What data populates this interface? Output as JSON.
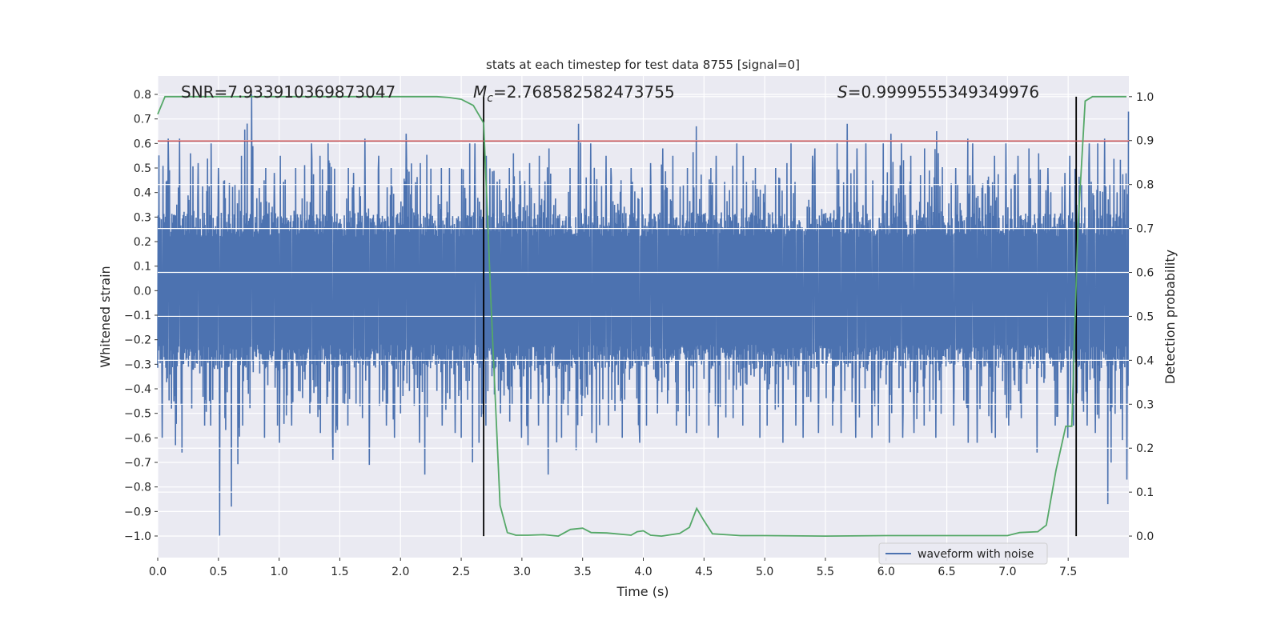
{
  "chart_data": {
    "type": "line",
    "title": "stats at each timestep for test data 8755 [signal=0]",
    "xlabel": "Time (s)",
    "ylabel": "Whitened strain",
    "ylabel_right": "Detection probability",
    "xlim": [
      0.0,
      8.0
    ],
    "ylim": [
      -1.088,
      0.875
    ],
    "ylim_right": [
      -0.049,
      1.047
    ],
    "x_ticks": [
      "0.0",
      "0.5",
      "1.0",
      "1.5",
      "2.0",
      "2.5",
      "3.0",
      "3.5",
      "4.0",
      "4.5",
      "5.0",
      "5.5",
      "6.0",
      "6.5",
      "7.0",
      "7.5"
    ],
    "y_ticks": [
      "0.8",
      "0.7",
      "0.6",
      "0.5",
      "0.4",
      "0.3",
      "0.2",
      "0.1",
      "0.0",
      "−0.1",
      "−0.2",
      "−0.3",
      "−0.4",
      "−0.5",
      "−0.6",
      "−0.7",
      "−0.8",
      "−0.9",
      "−1.0"
    ],
    "y_ticks_right": [
      "1.0",
      "0.9",
      "0.8",
      "0.7",
      "0.6",
      "0.5",
      "0.4",
      "0.3",
      "0.2",
      "0.1",
      "0.0"
    ],
    "grid": true,
    "legend": {
      "placement": "lower-right",
      "entries": [
        "waveform with noise"
      ]
    },
    "annotations": {
      "snr": "SNR=7.933910369873047",
      "mc_symbol": "M",
      "mc_sub": "c",
      "mc_value": "=2.768582582473755",
      "s_symbol": "S",
      "s_value": "=0.9999555349349976"
    },
    "threshold": 0.61,
    "markers_t": [
      2.685,
      7.566
    ],
    "colors": {
      "waveform": "#4c72b0",
      "probability": "#55a868",
      "threshold": "#c44e52",
      "markers": "#000000",
      "background": "#eaeaf2"
    },
    "waveform": {
      "name": "waveform with noise",
      "bin_width_s": 0.1,
      "upper_peaks": [
        0.62,
        0.62,
        0.56,
        0.52,
        0.6,
        0.5,
        0.55,
        0.8,
        0.5,
        0.48,
        0.55,
        0.5,
        0.6,
        0.55,
        0.6,
        0.5,
        0.48,
        0.62,
        0.55,
        0.5,
        0.64,
        0.52,
        0.62,
        0.5,
        0.5,
        0.6,
        0.6,
        0.55,
        0.5,
        0.56,
        0.52,
        0.55,
        0.58,
        0.5,
        0.68,
        0.6,
        0.55,
        0.5,
        0.45,
        0.5,
        0.52,
        0.58,
        0.55,
        0.5,
        0.67,
        0.5,
        0.55,
        0.6,
        0.55,
        0.5,
        0.5,
        0.52,
        0.6,
        0.55,
        0.58,
        0.6,
        0.68,
        0.58,
        0.6,
        0.6,
        0.64,
        0.6,
        0.55,
        0.58,
        0.65,
        0.5,
        0.62,
        0.6,
        0.55,
        0.6,
        0.55,
        0.58,
        0.56,
        0.5,
        0.48,
        0.55,
        0.6,
        0.6,
        0.62,
        0.73
      ],
      "lower_peaks": [
        -0.6,
        -0.63,
        -0.66,
        -0.55,
        -0.55,
        -1.0,
        -0.88,
        -0.55,
        -0.6,
        -0.55,
        -0.62,
        -0.55,
        -0.5,
        -0.58,
        -0.69,
        -0.55,
        -0.52,
        -0.71,
        -0.55,
        -0.6,
        -0.5,
        -0.62,
        -0.75,
        -0.55,
        -0.58,
        -0.7,
        -0.62,
        -0.55,
        -0.5,
        -0.6,
        -0.63,
        -0.55,
        -0.75,
        -0.6,
        -0.65,
        -0.58,
        -0.62,
        -0.55,
        -0.6,
        -0.62,
        -0.55,
        -0.5,
        -0.55,
        -0.58,
        -0.58,
        -0.55,
        -0.6,
        -0.52,
        -0.55,
        -0.6,
        -0.55,
        -0.62,
        -0.55,
        -0.6,
        -0.58,
        -0.55,
        -0.58,
        -0.6,
        -0.6,
        -0.55,
        -0.62,
        -0.6,
        -0.58,
        -0.55,
        -0.6,
        -0.55,
        -0.62,
        -0.62,
        -0.58,
        -0.6,
        -0.55,
        -0.52,
        -0.66,
        -0.55,
        -0.6,
        -0.55,
        -0.55,
        -0.58,
        -0.87,
        -0.77
      ]
    },
    "probability": {
      "t": [
        0.0,
        0.06,
        0.5,
        1.0,
        1.5,
        2.0,
        2.3,
        2.4,
        2.5,
        2.6,
        2.685,
        2.75,
        2.82,
        2.88,
        2.95,
        3.05,
        3.18,
        3.3,
        3.4,
        3.5,
        3.57,
        3.7,
        3.9,
        3.95,
        4.0,
        4.06,
        4.15,
        4.3,
        4.38,
        4.44,
        4.5,
        4.57,
        4.8,
        5.0,
        5.5,
        6.0,
        6.5,
        7.0,
        7.1,
        7.25,
        7.32,
        7.4,
        7.48,
        7.53,
        7.58,
        7.64,
        7.7,
        7.98
      ],
      "p": [
        0.96,
        1.0,
        1.0,
        1.0,
        1.0,
        1.0,
        1.0,
        0.998,
        0.994,
        0.98,
        0.94,
        0.5,
        0.07,
        0.008,
        0.002,
        0.002,
        0.003,
        0.0,
        0.015,
        0.018,
        0.008,
        0.007,
        0.002,
        0.01,
        0.012,
        0.002,
        0.0,
        0.006,
        0.02,
        0.063,
        0.035,
        0.005,
        0.001,
        0.001,
        0.0,
        0.001,
        0.001,
        0.001,
        0.008,
        0.01,
        0.025,
        0.15,
        0.25,
        0.25,
        0.7,
        0.99,
        1.0,
        1.0
      ]
    }
  }
}
